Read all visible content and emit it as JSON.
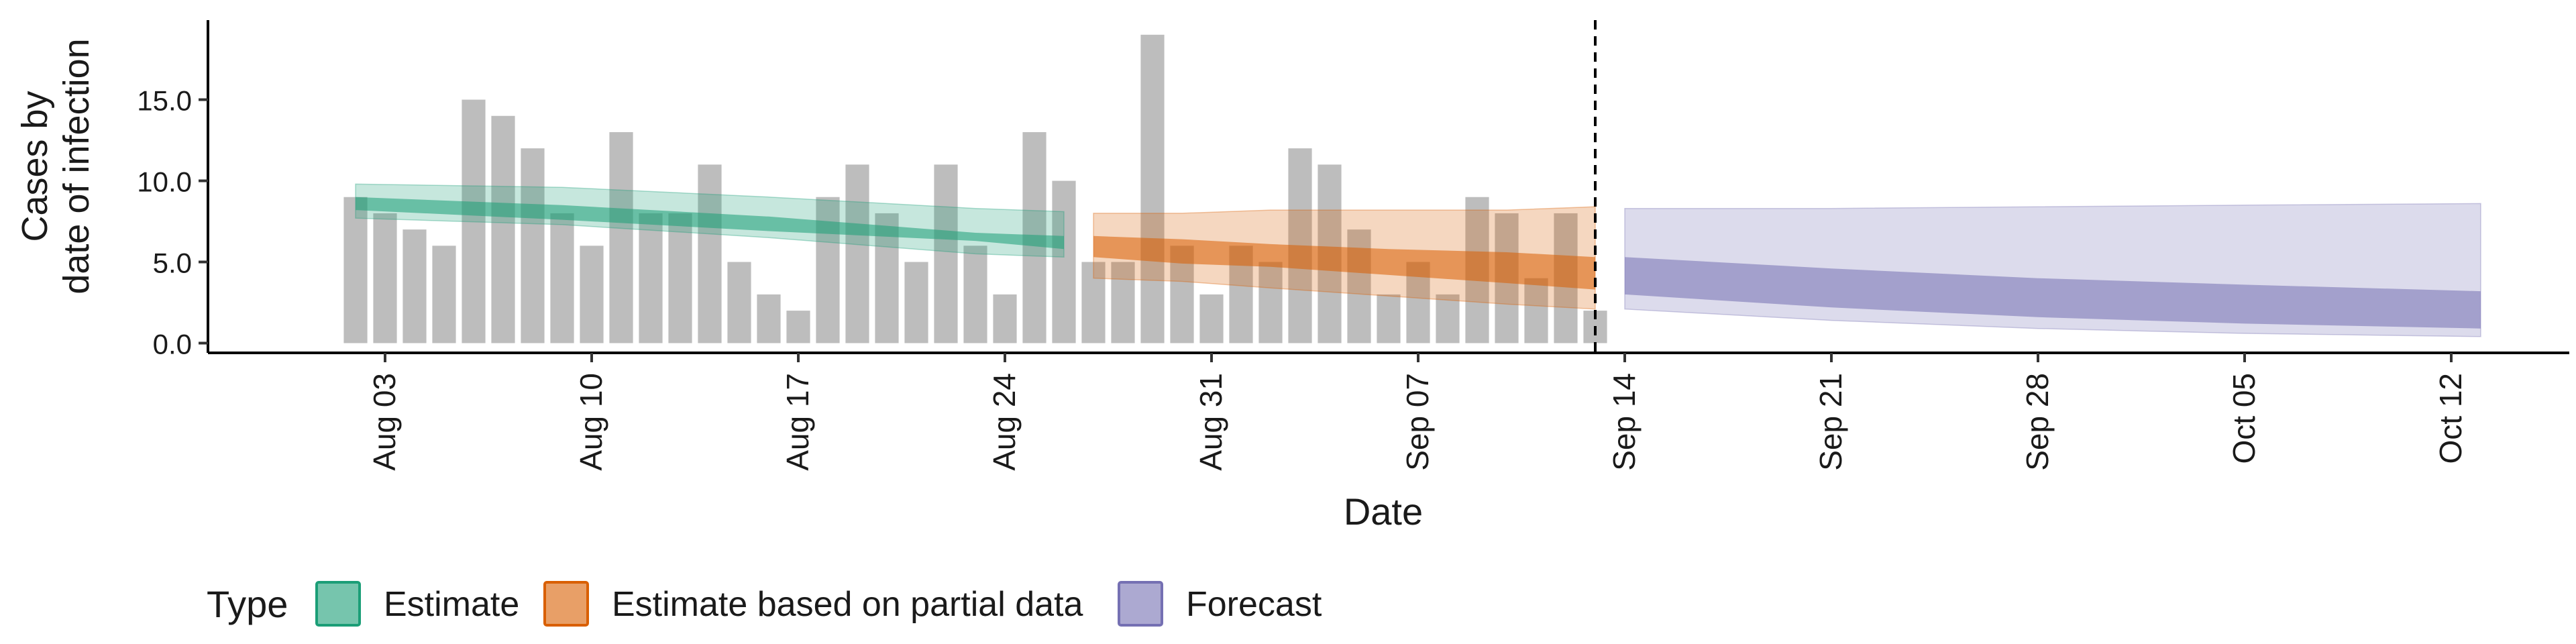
{
  "chart_data": {
    "type": "bar",
    "title": "",
    "xlabel": "Date",
    "ylabel": [
      "Cases by",
      "date of infection"
    ],
    "ylim": [
      -0.6,
      19.9
    ],
    "xlim": [
      "2020-07-28",
      "2020-10-16"
    ],
    "y_ticks": [
      0,
      5,
      10,
      15
    ],
    "y_tick_labels": [
      "0.0",
      "5.0",
      "10.0",
      "15.0"
    ],
    "x_ticks": [
      "2020-08-03",
      "2020-08-10",
      "2020-08-17",
      "2020-08-24",
      "2020-08-31",
      "2020-09-07",
      "2020-09-14",
      "2020-09-21",
      "2020-09-28",
      "2020-10-05",
      "2020-10-12"
    ],
    "x_tick_labels": [
      "Aug 03",
      "Aug 10",
      "Aug 17",
      "Aug 24",
      "Aug 31",
      "Sep 07",
      "Sep 14",
      "Sep 21",
      "Sep 28",
      "Oct 05",
      "Oct 12"
    ],
    "grid": false,
    "legend": {
      "title": "Type",
      "position": "bottom",
      "entries": [
        "Estimate",
        "Estimate based on partial data",
        "Forecast"
      ]
    },
    "colors": {
      "bars": "#bdbdbd",
      "estimate": "#1b9e77",
      "partial": "#d95f02",
      "forecast": "#7570b3",
      "cutoff_line": "#000000"
    },
    "cutoff_date": "2020-09-13",
    "bars": {
      "dates": [
        "2020-08-02",
        "2020-08-03",
        "2020-08-04",
        "2020-08-05",
        "2020-08-06",
        "2020-08-07",
        "2020-08-08",
        "2020-08-09",
        "2020-08-10",
        "2020-08-11",
        "2020-08-12",
        "2020-08-13",
        "2020-08-14",
        "2020-08-15",
        "2020-08-16",
        "2020-08-17",
        "2020-08-18",
        "2020-08-19",
        "2020-08-20",
        "2020-08-21",
        "2020-08-22",
        "2020-08-23",
        "2020-08-24",
        "2020-08-25",
        "2020-08-26",
        "2020-08-27",
        "2020-08-28",
        "2020-08-29",
        "2020-08-30",
        "2020-08-31",
        "2020-09-01",
        "2020-09-02",
        "2020-09-03",
        "2020-09-04",
        "2020-09-05",
        "2020-09-06",
        "2020-09-07",
        "2020-09-08",
        "2020-09-09",
        "2020-09-10",
        "2020-09-11",
        "2020-09-12",
        "2020-09-13"
      ],
      "values": [
        9,
        8,
        7,
        6,
        15,
        14,
        12,
        8,
        6,
        13,
        8,
        8,
        11,
        5,
        3,
        2,
        9,
        11,
        8,
        5,
        11,
        6,
        3,
        13,
        10,
        5,
        5,
        19,
        6,
        3,
        6,
        5,
        12,
        11,
        7,
        3,
        5,
        3,
        9,
        8,
        4,
        8,
        2
      ]
    },
    "series": [
      {
        "name": "Estimate",
        "x": [
          "2020-08-02",
          "2020-08-09",
          "2020-08-16",
          "2020-08-23",
          "2020-08-26"
        ],
        "lower90": [
          7.7,
          7.3,
          6.5,
          5.5,
          5.3
        ],
        "upper90": [
          9.8,
          9.6,
          9.0,
          8.3,
          8.1
        ],
        "lower50": [
          8.2,
          7.6,
          6.9,
          6.3,
          5.8
        ],
        "upper50": [
          9.0,
          8.5,
          7.8,
          6.8,
          6.6
        ]
      },
      {
        "name": "Estimate based on partial data",
        "x": [
          "2020-08-27",
          "2020-08-30",
          "2020-09-02",
          "2020-09-06",
          "2020-09-10",
          "2020-09-13"
        ],
        "lower90": [
          4.0,
          3.8,
          3.4,
          2.9,
          2.4,
          2.1
        ],
        "upper90": [
          8.0,
          8.0,
          8.2,
          8.2,
          8.2,
          8.4
        ],
        "lower50": [
          5.3,
          4.9,
          4.7,
          4.2,
          3.7,
          3.3
        ],
        "upper50": [
          6.6,
          6.4,
          6.1,
          5.8,
          5.6,
          5.3
        ]
      },
      {
        "name": "Forecast",
        "x": [
          "2020-09-14",
          "2020-09-21",
          "2020-09-28",
          "2020-10-05",
          "2020-10-13"
        ],
        "lower90": [
          2.1,
          1.4,
          0.9,
          0.6,
          0.4
        ],
        "upper90": [
          8.3,
          8.3,
          8.4,
          8.5,
          8.6
        ],
        "lower50": [
          3.0,
          2.2,
          1.6,
          1.2,
          0.9
        ],
        "upper50": [
          5.3,
          4.6,
          4.0,
          3.6,
          3.2
        ]
      }
    ]
  }
}
